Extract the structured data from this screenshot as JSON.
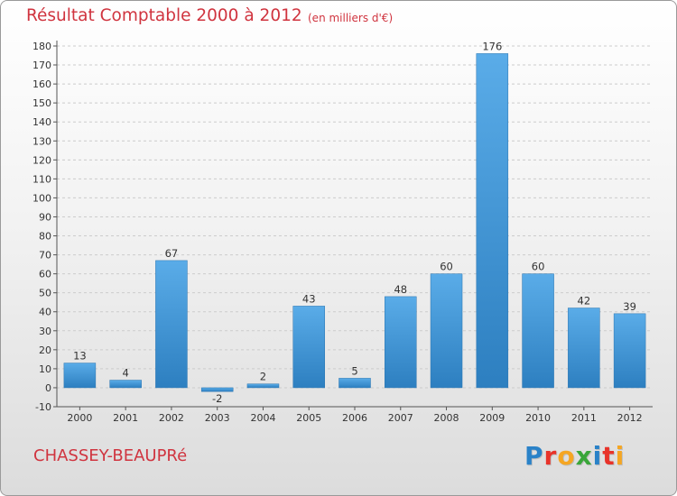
{
  "header": {
    "title": "Résultat Comptable 2000 à 2012",
    "subtitle": "(en milliers d'€)"
  },
  "footer": {
    "town": "CHASSEY-BEAUPRé",
    "logo_letters": [
      "P",
      "r",
      "o",
      "x",
      "i",
      "t",
      "i"
    ],
    "logo_colors": [
      "#2a82c8",
      "#e8332a",
      "#f5a623",
      "#3aa63a",
      "#2a82c8",
      "#e8332a",
      "#f5a623"
    ]
  },
  "colors": {
    "bar_light": "#5aace8",
    "bar_dark": "#2d7fc0",
    "text_red": "#d0343f",
    "grid": "#cccccc",
    "axis": "#555555"
  },
  "chart_data": {
    "type": "bar",
    "title": "Résultat Comptable 2000 à 2012",
    "subtitle": "(en milliers d'€)",
    "categories": [
      "2000",
      "2001",
      "2002",
      "2003",
      "2004",
      "2005",
      "2006",
      "2007",
      "2008",
      "2009",
      "2010",
      "2011",
      "2012"
    ],
    "values": [
      13,
      4,
      67,
      -2,
      2,
      43,
      5,
      48,
      60,
      176,
      60,
      42,
      39
    ],
    "data_labels": [
      "13",
      "4",
      "67",
      "-2",
      "2",
      "43",
      "5",
      "48",
      "60",
      "176",
      "60",
      "42",
      "39"
    ],
    "ylim": [
      -10,
      180
    ],
    "yticks": [
      -10,
      0,
      10,
      20,
      30,
      40,
      50,
      60,
      70,
      80,
      90,
      100,
      110,
      120,
      130,
      140,
      150,
      160,
      170,
      180
    ],
    "xlabel": "",
    "ylabel": "",
    "grid": true
  }
}
